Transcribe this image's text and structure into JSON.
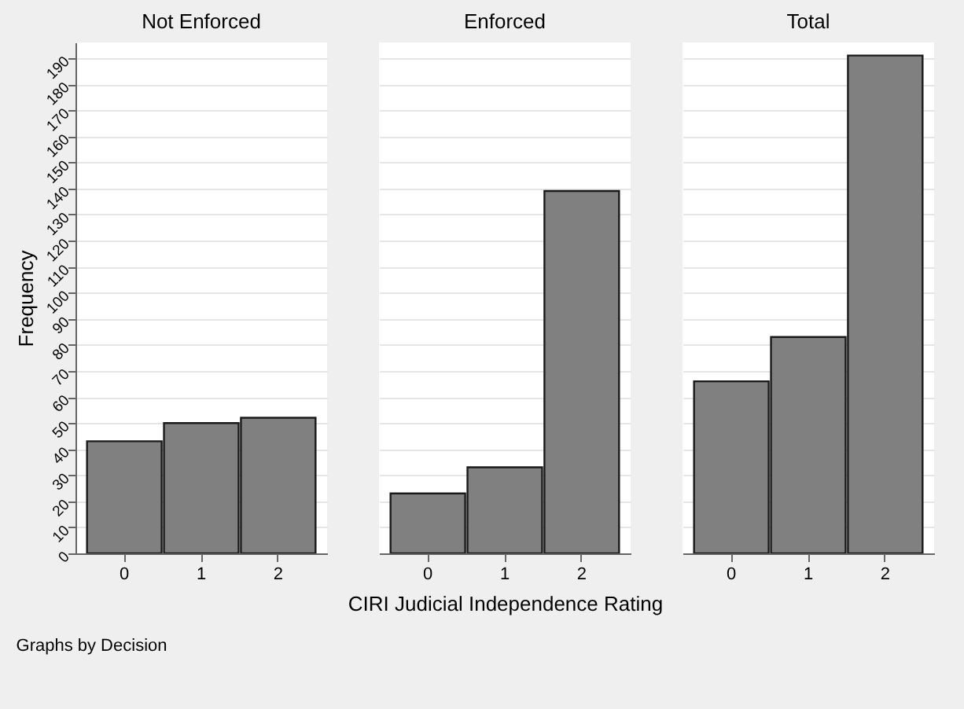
{
  "chart_data": [
    {
      "type": "bar",
      "title": "Not Enforced",
      "ylabel": "Frequency",
      "categories": [
        "0",
        "1",
        "2"
      ],
      "values": [
        43,
        50,
        52
      ],
      "color": "#808080",
      "ylim": [
        0,
        196
      ],
      "yticks": [
        0,
        10,
        20,
        30,
        40,
        50,
        60,
        70,
        80,
        90,
        100,
        110,
        120,
        130,
        140,
        150,
        160,
        170,
        180,
        190
      ],
      "grid": "y",
      "annotations": [
        "Graphs by Decision"
      ]
    },
    {
      "type": "bar",
      "title": "Enforced",
      "xlabel": "CIRI Judicial Independence Rating",
      "categories": [
        "0",
        "1",
        "2"
      ],
      "values": [
        23,
        33,
        139
      ],
      "color": "#808080",
      "ylim": [
        0,
        196
      ],
      "yticks": [
        0,
        10,
        20,
        30,
        40,
        50,
        60,
        70,
        80,
        90,
        100,
        110,
        120,
        130,
        140,
        150,
        160,
        170,
        180,
        190
      ],
      "grid": "y",
      "tick_labels": "x"
    },
    {
      "type": "bar",
      "title": "Total",
      "categories": [
        "0",
        "1",
        "2"
      ],
      "values": [
        66,
        83,
        191
      ],
      "color": "#808080",
      "ylim": [
        0,
        196
      ],
      "yticks": [
        0,
        10,
        20,
        30,
        40,
        50,
        60,
        70,
        80,
        90,
        100,
        110,
        120,
        130,
        140,
        150,
        160,
        170,
        180,
        190
      ],
      "grid": "y",
      "tick_labels": "x"
    }
  ]
}
